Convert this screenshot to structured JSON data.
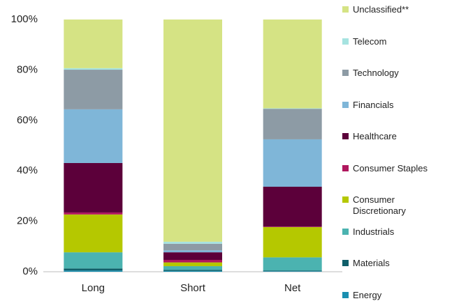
{
  "chart_data": {
    "type": "stacked_bar",
    "categories": [
      "Long",
      "Short",
      "Net"
    ],
    "series": [
      {
        "name": "Energy",
        "color": "#1a8fb0",
        "values": [
          0.5,
          0.3,
          0.2
        ]
      },
      {
        "name": "Materials",
        "color": "#0f5f6a",
        "values": [
          0.8,
          0.4,
          0.3
        ]
      },
      {
        "name": "Industrials",
        "color": "#4bb3b0",
        "values": [
          6.4,
          1.5,
          5.2
        ]
      },
      {
        "name": "Consumer Discretionary",
        "color": "#b5c800",
        "values": [
          15,
          1.5,
          12
        ]
      },
      {
        "name": "Consumer Staples",
        "color": "#b0175e",
        "values": [
          0.8,
          1.0,
          0.2
        ]
      },
      {
        "name": "Healthcare",
        "color": "#5c003a",
        "values": [
          19.6,
          3.0,
          15.8
        ]
      },
      {
        "name": "Financials",
        "color": "#7fb6d8",
        "values": [
          21.3,
          0.8,
          18.8
        ]
      },
      {
        "name": "Technology",
        "color": "#8d9ba5",
        "values": [
          15.7,
          2.6,
          12.1
        ]
      },
      {
        "name": "Telecom",
        "color": "#a6e3e0",
        "values": [
          0.6,
          0.8,
          0.2
        ]
      },
      {
        "name": "Unclassified**",
        "color": "#d5e384",
        "values": [
          19.3,
          88.1,
          35.2
        ]
      }
    ],
    "ylim": [
      0,
      100
    ],
    "yticks": [
      {
        "value": 0,
        "label": "0%"
      },
      {
        "value": 20,
        "label": "20%"
      },
      {
        "value": 40,
        "label": "40%"
      },
      {
        "value": 60,
        "label": "60%"
      },
      {
        "value": 80,
        "label": "80%"
      },
      {
        "value": 100,
        "label": "100%"
      }
    ],
    "grid": false
  }
}
